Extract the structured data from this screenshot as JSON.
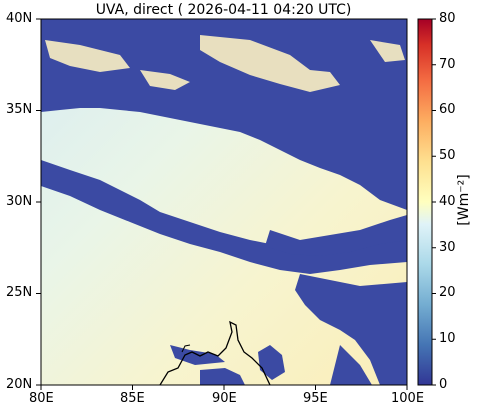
{
  "title": "UVA, direct ( 2026-04-11 04:20 UTC)",
  "map": {
    "lon_range": [
      80,
      100
    ],
    "lat_range": [
      20,
      40
    ],
    "x_ticks": [
      "80E",
      "85E",
      "90E",
      "95E",
      "100E"
    ],
    "y_ticks": [
      "20N",
      "25N",
      "30N",
      "35N",
      "40N"
    ],
    "cloud_color": "#3b4aa3",
    "coastline_color": "#000000"
  },
  "colorbar": {
    "range": [
      0,
      80
    ],
    "ticks": [
      "0",
      "10",
      "20",
      "30",
      "40",
      "50",
      "60",
      "70",
      "80"
    ],
    "unit": "[Wm⁻²]",
    "colormap": "RdYlBu_r"
  }
}
